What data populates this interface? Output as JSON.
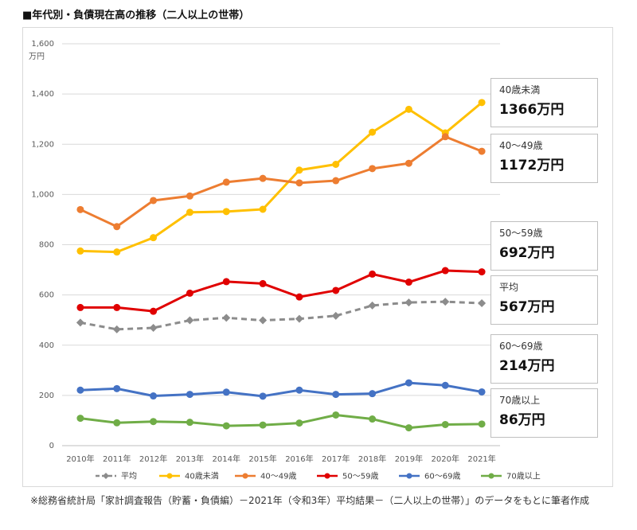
{
  "title": "■年代別・負債現在高の推移（二人以上の世帯）",
  "footnote": "※総務省統計局「家計調査報告（貯蓄・負債編）－2021年（令和3年）平均結果－（二人以上の世帯）」のデータをもとに筆者作成",
  "chart_data": {
    "type": "line",
    "unit_label": "万円",
    "categories": [
      "2010年",
      "2011年",
      "2012年",
      "2013年",
      "2014年",
      "2015年",
      "2016年",
      "2017年",
      "2018年",
      "2019年",
      "2020年",
      "2021年"
    ],
    "ylim": [
      0,
      1600
    ],
    "yticks": [
      "0",
      "200",
      "400",
      "600",
      "800",
      "1,000",
      "1,200",
      "1,400",
      "1,600"
    ],
    "ytick_values": [
      0,
      200,
      400,
      600,
      800,
      1000,
      1200,
      1400,
      1600
    ],
    "grid": true,
    "legend_position": "bottom",
    "series": [
      {
        "name": "平均",
        "color": "#8c8c8c",
        "dashed": true,
        "values": [
          490,
          463,
          469,
          499,
          509,
          499,
          505,
          517,
          558,
          570,
          573,
          567
        ]
      },
      {
        "name": "40歳未満",
        "color": "#ffc000",
        "dashed": false,
        "values": [
          775,
          771,
          828,
          929,
          932,
          941,
          1097,
          1120,
          1248,
          1339,
          1245,
          1366
        ]
      },
      {
        "name": "40～49歳",
        "color": "#ed7d31",
        "dashed": false,
        "values": [
          940,
          872,
          976,
          994,
          1049,
          1064,
          1046,
          1055,
          1103,
          1124,
          1230,
          1172
        ]
      },
      {
        "name": "50～59歳",
        "color": "#e00000",
        "dashed": false,
        "values": [
          550,
          550,
          535,
          607,
          653,
          645,
          592,
          618,
          683,
          651,
          697,
          692
        ]
      },
      {
        "name": "60～69歳",
        "color": "#4472c4",
        "dashed": false,
        "values": [
          221,
          227,
          198,
          204,
          213,
          197,
          221,
          204,
          207,
          250,
          240,
          214
        ]
      },
      {
        "name": "70歳以上",
        "color": "#70ad47",
        "dashed": false,
        "values": [
          109,
          91,
          96,
          93,
          79,
          82,
          90,
          122,
          106,
          71,
          84,
          86
        ]
      }
    ]
  },
  "callouts": [
    {
      "name": "40歳未満",
      "value": "1366万円"
    },
    {
      "name": "40～49歳",
      "value": "1172万円"
    },
    {
      "name": "50～59歳",
      "value": "692万円"
    },
    {
      "name": "平均",
      "value": "567万円"
    },
    {
      "name": "60～69歳",
      "value": "214万円"
    },
    {
      "name": "70歳以上",
      "value": "86万円"
    }
  ]
}
